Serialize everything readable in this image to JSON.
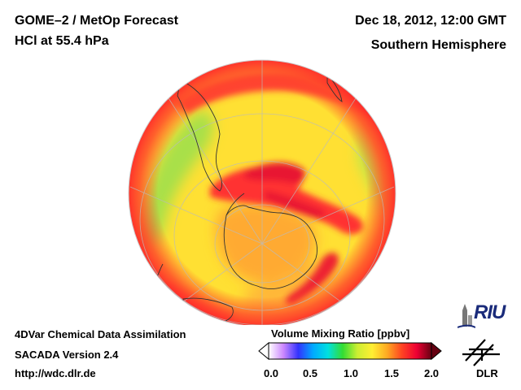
{
  "header": {
    "title_line1": "GOME–2 / MetOp Forecast",
    "title_line2": "HCl at 55.4 hPa",
    "date": "Dec 18, 2012, 12:00 GMT",
    "region": "Southern Hemisphere"
  },
  "footer": {
    "line1": "4DVar Chemical Data Assimilation",
    "line2": "SACADA Version 2.4",
    "line3": "http://wdc.dlr.de"
  },
  "colorbar": {
    "title": "Volume Mixing Ratio [ppbv]",
    "ticks": [
      "0.0",
      "0.5",
      "1.0",
      "1.5",
      "2.0"
    ],
    "range": [
      0.0,
      2.0
    ],
    "colors": [
      "#ffffff",
      "#cc88ff",
      "#3333ff",
      "#00aaff",
      "#00e0e0",
      "#33dd33",
      "#ccee33",
      "#ffee33",
      "#ffaa22",
      "#ff4422",
      "#ee0033",
      "#660011"
    ]
  },
  "map": {
    "projection": "orthographic, south pole view",
    "colors": {
      "ocean_base": "#ffe033",
      "green_band": "#a8e04a",
      "orange": "#ffaa30",
      "red": "#ff3030",
      "deep_red": "#e81530"
    }
  },
  "logos": {
    "riu": "RIU",
    "dlr": "DLR"
  }
}
